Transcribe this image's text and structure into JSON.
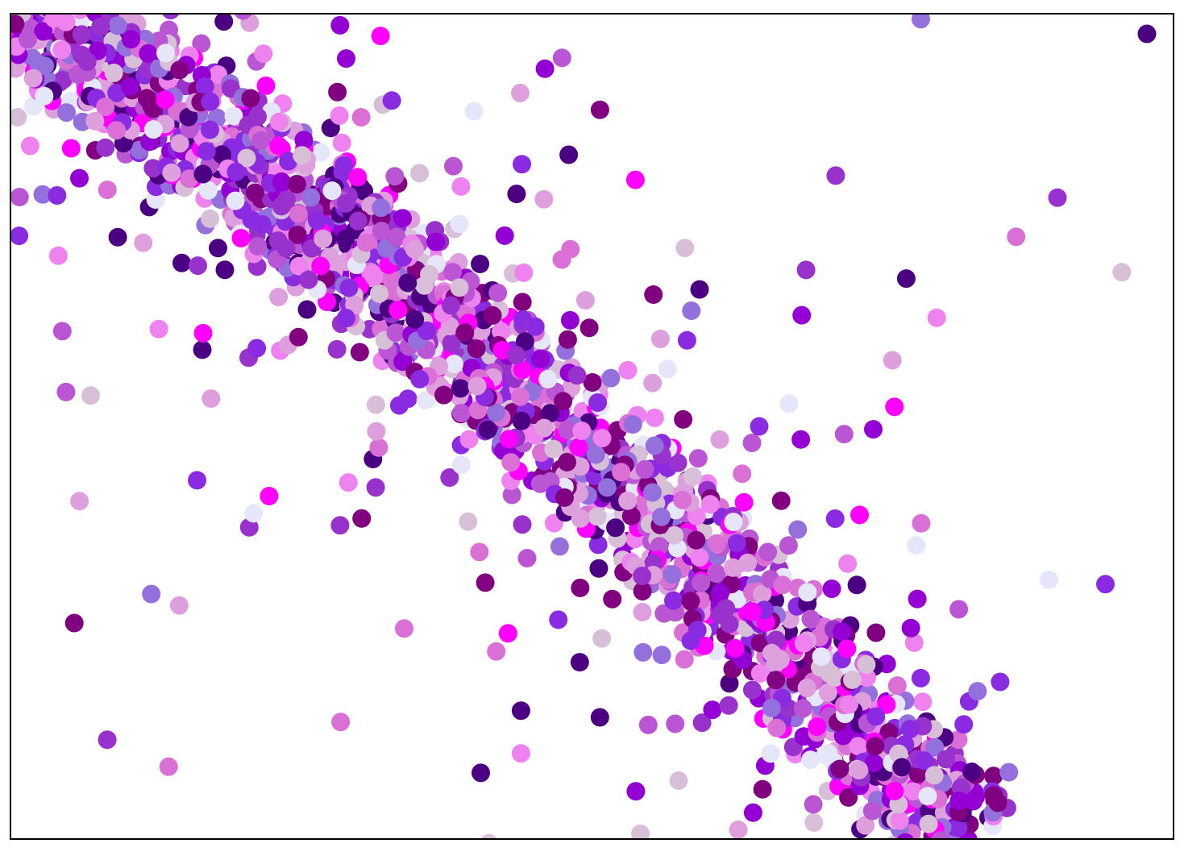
{
  "canvas": {
    "background": "#ffffff",
    "border_color": "#000000"
  },
  "art": {
    "description_free": true,
    "dot_colors": [
      "#4b0082",
      "#800080",
      "#8a2be2",
      "#9400d3",
      "#9932cc",
      "#ba55d3",
      "#da70d6",
      "#dda0dd",
      "#ee82ee",
      "#ff00ff",
      "#d8bfd8",
      "#e6e6fa",
      "#9370db"
    ]
  }
}
